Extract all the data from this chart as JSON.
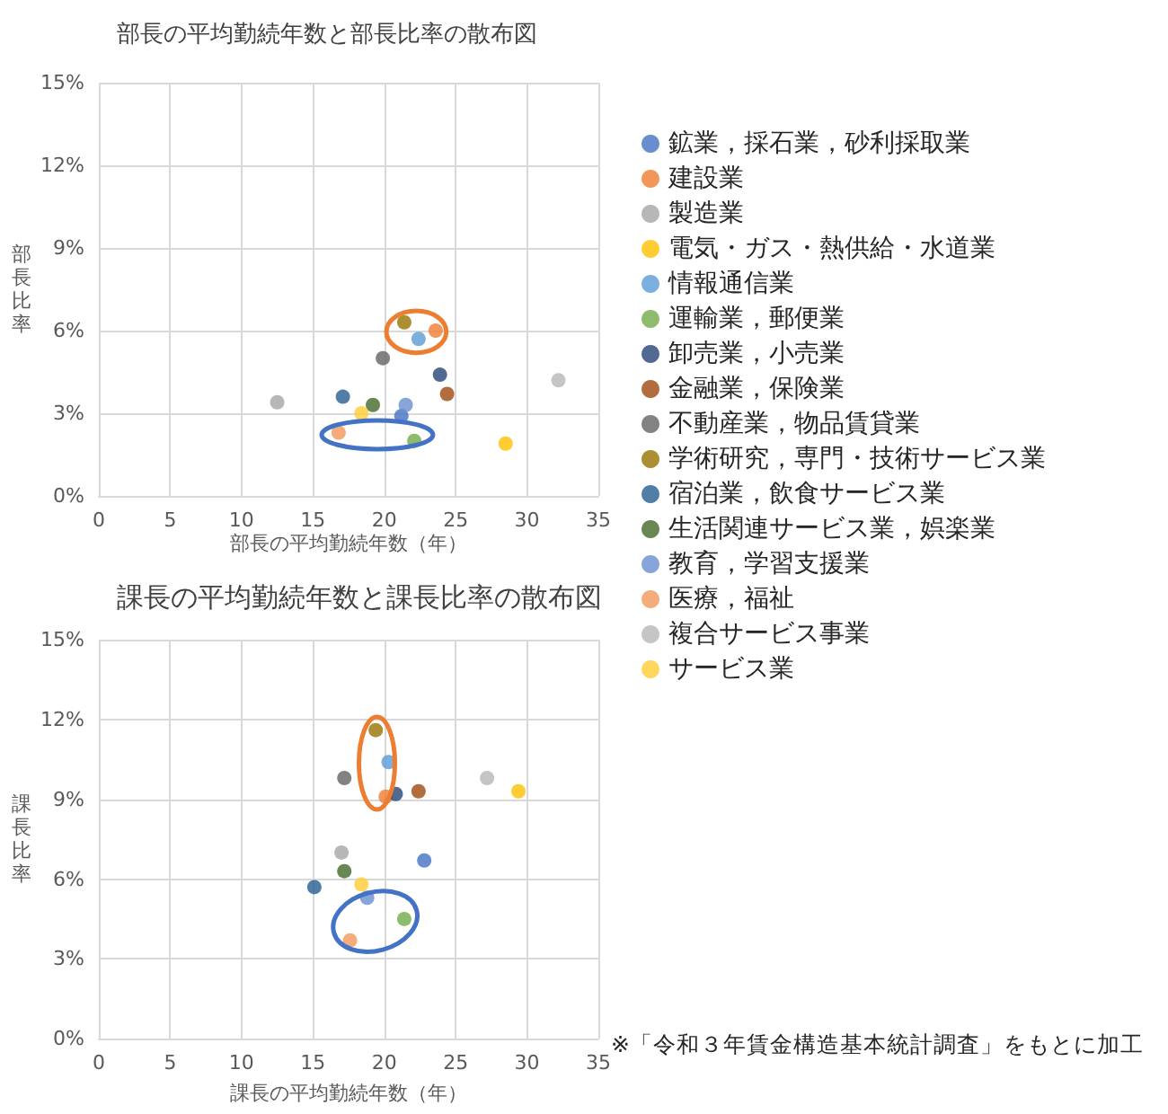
{
  "chart_data": [
    {
      "type": "scatter",
      "title": "部長の平均勤続年数と部長比率の散布図",
      "xlabel": "部長の平均勤続年数（年）",
      "ylabel": "部長比率",
      "xlim": [
        0,
        35
      ],
      "xticks": [
        0,
        5,
        10,
        15,
        20,
        25,
        30,
        35
      ],
      "ylim": [
        0,
        15
      ],
      "yticks": [
        {
          "value": 0,
          "label": "0%"
        },
        {
          "value": 3,
          "label": "3%"
        },
        {
          "value": 6,
          "label": "6%"
        },
        {
          "value": 9,
          "label": "9%"
        },
        {
          "value": 12,
          "label": "12%"
        },
        {
          "value": 15,
          "label": "15%"
        }
      ],
      "grid": true,
      "legend": "right",
      "marker": "circle",
      "series": [
        {
          "name": "鉱業，採石業，砂利採取業",
          "color": "#4472c4",
          "x": [
            21.2
          ],
          "values": [
            2.9
          ]
        },
        {
          "name": "建設業",
          "color": "#ed7d31",
          "x": [
            23.6
          ],
          "values": [
            6.0
          ]
        },
        {
          "name": "製造業",
          "color": "#a5a5a5",
          "x": [
            12.5
          ],
          "values": [
            3.4
          ]
        },
        {
          "name": "電気・ガス・熱供給・水道業",
          "color": "#ffc000",
          "x": [
            28.5
          ],
          "values": [
            1.9
          ]
        },
        {
          "name": "情報通信業",
          "color": "#5b9bd5",
          "x": [
            22.4
          ],
          "values": [
            5.7
          ]
        },
        {
          "name": "運輸業，郵便業",
          "color": "#70ad47",
          "x": [
            22.1
          ],
          "values": [
            2.0
          ]
        },
        {
          "name": "卸売業，小売業",
          "color": "#264478",
          "x": [
            23.9
          ],
          "values": [
            4.4
          ]
        },
        {
          "name": "金融業，保険業",
          "color": "#9e480e",
          "x": [
            24.4
          ],
          "values": [
            3.7
          ]
        },
        {
          "name": "不動産業，物品賃貸業",
          "color": "#636363",
          "x": [
            19.9
          ],
          "values": [
            5.0
          ]
        },
        {
          "name": "学術研究，専門・技術サービス業",
          "color": "#997300",
          "x": [
            21.4
          ],
          "values": [
            6.3
          ]
        },
        {
          "name": "宿泊業，飲食サービス業",
          "color": "#255e91",
          "x": [
            17.1
          ],
          "values": [
            3.6
          ]
        },
        {
          "name": "生活関連サービス業，娯楽業",
          "color": "#43682b",
          "x": [
            19.2
          ],
          "values": [
            3.3
          ]
        },
        {
          "name": "教育，学習支援業",
          "color": "#698ed0",
          "x": [
            21.5
          ],
          "values": [
            3.3
          ]
        },
        {
          "name": "医療，福祉",
          "color": "#f1975a",
          "x": [
            16.8
          ],
          "values": [
            2.3
          ]
        },
        {
          "name": "複合サービス事業",
          "color": "#b7b7b7",
          "x": [
            32.2
          ],
          "values": [
            4.2
          ]
        },
        {
          "name": "サービス業",
          "color": "#ffcd33",
          "x": [
            18.4
          ],
          "values": [
            3.0
          ]
        }
      ]
    },
    {
      "type": "scatter",
      "title": "課長の平均勤続年数と課長比率の散布図",
      "xlabel": "課長の平均勤続年数（年）",
      "ylabel": "課長比率",
      "xlim": [
        0,
        35
      ],
      "xticks": [
        0,
        5,
        10,
        15,
        20,
        25,
        30,
        35
      ],
      "ylim": [
        0,
        15
      ],
      "yticks": [
        {
          "value": 0,
          "label": "0%"
        },
        {
          "value": 3,
          "label": "3%"
        },
        {
          "value": 6,
          "label": "6%"
        },
        {
          "value": 9,
          "label": "9%"
        },
        {
          "value": 12,
          "label": "12%"
        },
        {
          "value": 15,
          "label": "15%"
        }
      ],
      "grid": true,
      "legend": false,
      "marker": "circle",
      "annotations": [
        "※「令和３年賃金構造基本統計調査」をもとに加工"
      ],
      "series": [
        {
          "color": "#4472c4",
          "x": [
            22.8
          ],
          "values": [
            6.7
          ]
        },
        {
          "color": "#ed7d31",
          "x": [
            20.1
          ],
          "values": [
            9.1
          ]
        },
        {
          "color": "#a5a5a5",
          "x": [
            17.0
          ],
          "values": [
            7.0
          ]
        },
        {
          "color": "#ffc000",
          "x": [
            29.4
          ],
          "values": [
            9.3
          ]
        },
        {
          "color": "#5b9bd5",
          "x": [
            20.3
          ],
          "values": [
            10.4
          ]
        },
        {
          "color": "#70ad47",
          "x": [
            21.4
          ],
          "values": [
            4.5
          ]
        },
        {
          "color": "#264478",
          "x": [
            20.8
          ],
          "values": [
            9.2
          ]
        },
        {
          "color": "#9e480e",
          "x": [
            22.4
          ],
          "values": [
            9.3
          ]
        },
        {
          "color": "#636363",
          "x": [
            17.2
          ],
          "values": [
            9.8
          ]
        },
        {
          "color": "#997300",
          "x": [
            19.4
          ],
          "values": [
            11.6
          ]
        },
        {
          "color": "#255e91",
          "x": [
            15.1
          ],
          "values": [
            5.7
          ]
        },
        {
          "color": "#43682b",
          "x": [
            17.2
          ],
          "values": [
            6.3
          ]
        },
        {
          "color": "#698ed0",
          "x": [
            18.8
          ],
          "values": [
            5.3
          ]
        },
        {
          "color": "#f1975a",
          "x": [
            17.6
          ],
          "values": [
            3.7
          ]
        },
        {
          "color": "#b7b7b7",
          "x": [
            27.2
          ],
          "values": [
            9.8
          ]
        },
        {
          "color": "#ffcd33",
          "x": [
            18.4
          ],
          "values": [
            5.8
          ]
        }
      ]
    }
  ]
}
